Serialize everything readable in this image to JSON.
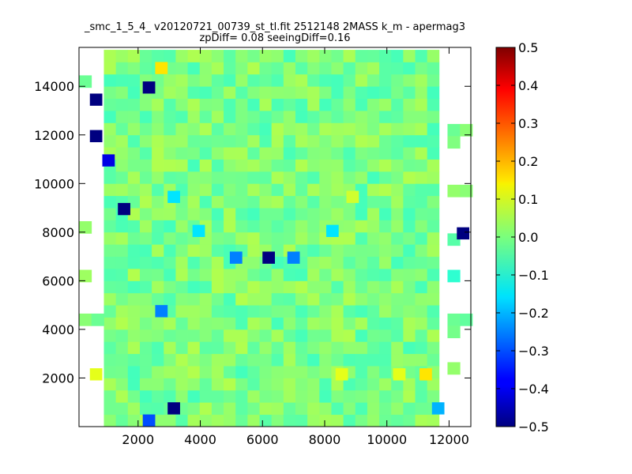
{
  "chart_data": {
    "type": "heatmap",
    "title": "_smc_1_5_4_ v20120721_00739_st_tl.fit 2512148 2MASS k_m - apermag3",
    "subtitle": "zpDiff= 0.08 seeingDiff=0.16",
    "xlabel": "",
    "ylabel": "",
    "xlim": [
      100,
      12700
    ],
    "ylim": [
      0,
      15600
    ],
    "x_ticks": [
      2000,
      4000,
      6000,
      8000,
      10000,
      12000
    ],
    "y_ticks": [
      2000,
      4000,
      6000,
      8000,
      10000,
      12000,
      14000
    ],
    "x_tick_labels": [
      "2000",
      "4000",
      "6000",
      "8000",
      "10000",
      "12000"
    ],
    "y_tick_labels": [
      "2000",
      "4000",
      "6000",
      "8000",
      "10000",
      "12000",
      "14000"
    ],
    "grid": false,
    "colormap": "jet",
    "color_range": [
      -0.5,
      0.5
    ],
    "colorbar_ticks": [
      0.5,
      0.4,
      0.3,
      0.2,
      0.1,
      0.0,
      -0.1,
      -0.2,
      -0.3,
      -0.4,
      -0.5
    ],
    "colorbar_tick_labels": [
      "0.5",
      "0.4",
      "0.3",
      "0.2",
      "0.1",
      "0.0",
      "−0.1",
      "−0.2",
      "−0.3",
      "−0.4",
      "−0.5"
    ],
    "cell_size": [
      385,
      500
    ],
    "grid_origin": [
      100,
      0
    ],
    "col_ranges": [
      [
        1,
        2,
        5,
        7,
        8,
        10,
        14,
        15,
        27
      ],
      [
        2,
        29
      ]
    ],
    "col_range_starts": [
      [
        0,
        0
      ],
      [
        0,
        2
      ]
    ],
    "cell_values_base": 0.0,
    "outliers": [
      {
        "x": 2750,
        "y": 14750,
        "value": 0.15
      },
      {
        "x": 2350,
        "y": 13950,
        "value": -0.5
      },
      {
        "x": 650,
        "y": 13450,
        "value": -0.5
      },
      {
        "x": 650,
        "y": 11950,
        "value": -0.5
      },
      {
        "x": 1050,
        "y": 10950,
        "value": -0.4
      },
      {
        "x": 3150,
        "y": 9450,
        "value": -0.15
      },
      {
        "x": 1550,
        "y": 8950,
        "value": -0.5
      },
      {
        "x": 3950,
        "y": 8050,
        "value": -0.15
      },
      {
        "x": 8250,
        "y": 8050,
        "value": -0.15
      },
      {
        "x": 12450,
        "y": 7950,
        "value": -0.5
      },
      {
        "x": 5150,
        "y": 6950,
        "value": -0.25
      },
      {
        "x": 6200,
        "y": 6950,
        "value": -0.5
      },
      {
        "x": 7000,
        "y": 6950,
        "value": -0.25
      },
      {
        "x": 2750,
        "y": 4750,
        "value": -0.25
      },
      {
        "x": 650,
        "y": 2150,
        "value": 0.1
      },
      {
        "x": 11250,
        "y": 2150,
        "value": 0.15
      },
      {
        "x": 3150,
        "y": 750,
        "value": -0.5
      },
      {
        "x": 2350,
        "y": 250,
        "value": -0.3
      },
      {
        "x": 11650,
        "y": 750,
        "value": -0.2
      },
      {
        "x": 8550,
        "y": 2150,
        "value": 0.1
      },
      {
        "x": 10400,
        "y": 2150,
        "value": 0.1
      },
      {
        "x": 8900,
        "y": 9450,
        "value": 0.08
      }
    ]
  }
}
